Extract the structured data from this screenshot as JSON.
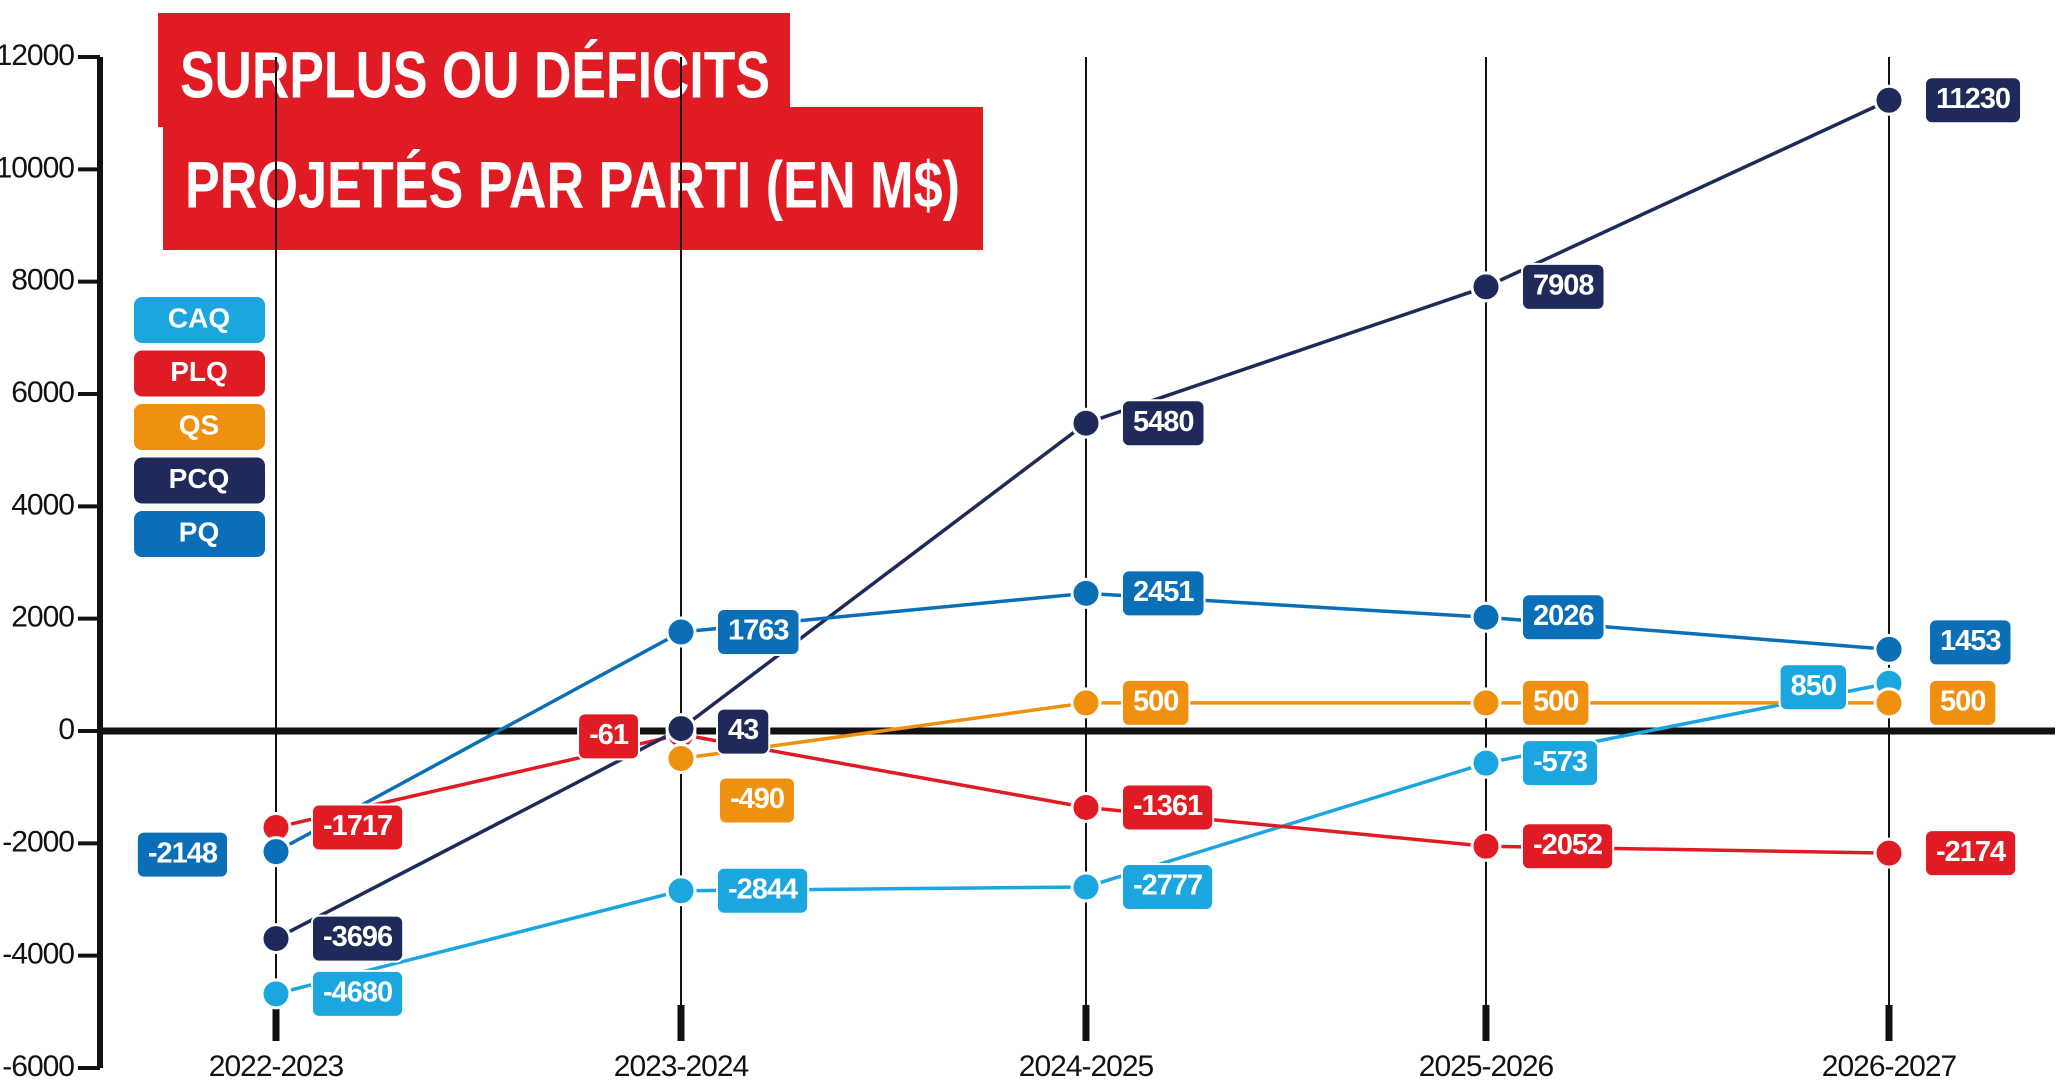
{
  "chart_data": {
    "type": "line",
    "title": [
      "SURPLUS OU DÉFICITS",
      "PROJETÉS PAR PARTI (EN M$)"
    ],
    "categories": [
      "2022-2023",
      "2023-2024",
      "2024-2025",
      "2025-2026",
      "2026-2027"
    ],
    "series": [
      {
        "name": "CAQ",
        "color": "#1ba6e0",
        "values": [
          -4680,
          -2844,
          -2777,
          -573,
          850
        ]
      },
      {
        "name": "PLQ",
        "color": "#e01b24",
        "values": [
          -1717,
          -61,
          -1361,
          -2052,
          -2174
        ]
      },
      {
        "name": "QS",
        "color": "#f0900f",
        "values": [
          null,
          -490,
          500,
          500,
          500
        ]
      },
      {
        "name": "PCQ",
        "color": "#1f2a5a",
        "values": [
          -3696,
          43,
          5480,
          7908,
          11230
        ]
      },
      {
        "name": "PQ",
        "color": "#0b6fb8",
        "values": [
          -2148,
          1763,
          2451,
          2026,
          1453
        ]
      }
    ],
    "ylim": [
      -6000,
      12000
    ],
    "yticks": [
      -6000,
      -4000,
      -2000,
      0,
      2000,
      4000,
      6000,
      8000,
      10000,
      12000
    ]
  }
}
